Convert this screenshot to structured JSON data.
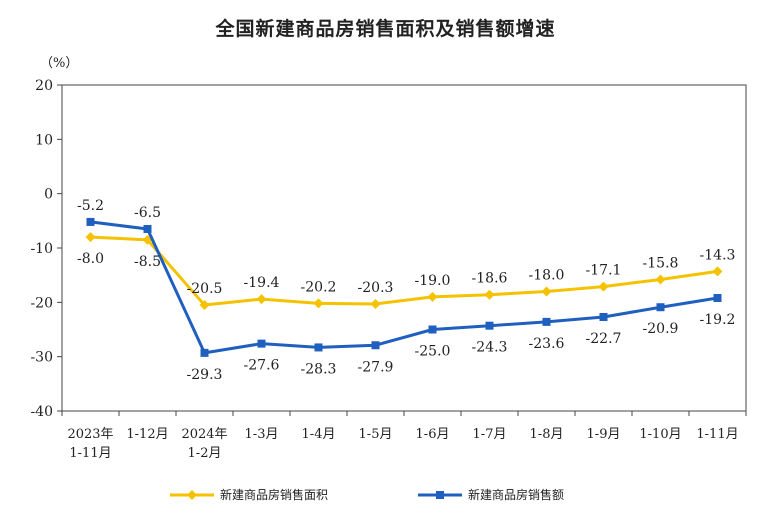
{
  "chart_data": {
    "type": "line",
    "title": "全国新建商品房销售面积及销售额增速",
    "unit": "（%）",
    "categories": [
      "2023年\n1-11月",
      "1-12月",
      "2024年\n1-2月",
      "1-3月",
      "1-4月",
      "1-5月",
      "1-6月",
      "1-7月",
      "1-8月",
      "1-9月",
      "1-10月",
      "1-11月"
    ],
    "ylim": [
      -40,
      20
    ],
    "yticks": [
      "20",
      "10",
      "0",
      "-10",
      "-20",
      "-30",
      "-40"
    ],
    "series": [
      {
        "name": "新建商品房销售面积",
        "color": "#f5c200",
        "marker": "diamond",
        "values": [
          -8.0,
          -8.5,
          -20.5,
          -19.4,
          -20.2,
          -20.3,
          -19.0,
          -18.6,
          -18.0,
          -17.1,
          -15.8,
          -14.3
        ],
        "labels": [
          "-8.0",
          "-8.5",
          "-20.5",
          "-19.4",
          "-20.2",
          "-20.3",
          "-19.0",
          "-18.6",
          "-18.0",
          "-17.1",
          "-15.8",
          "-14.3"
        ]
      },
      {
        "name": "新建商品房销售额",
        "color": "#1f5fbf",
        "marker": "square",
        "values": [
          -5.2,
          -6.5,
          -29.3,
          -27.6,
          -28.3,
          -27.9,
          -25.0,
          -24.3,
          -23.6,
          -22.7,
          -20.9,
          -19.2
        ],
        "labels": [
          "-5.2",
          "-6.5",
          "-29.3",
          "-27.6",
          "-28.3",
          "-27.9",
          "-25.0",
          "-24.3",
          "-23.6",
          "-22.7",
          "-20.9",
          "-19.2"
        ]
      }
    ],
    "grid": false,
    "legend": "bottom"
  }
}
